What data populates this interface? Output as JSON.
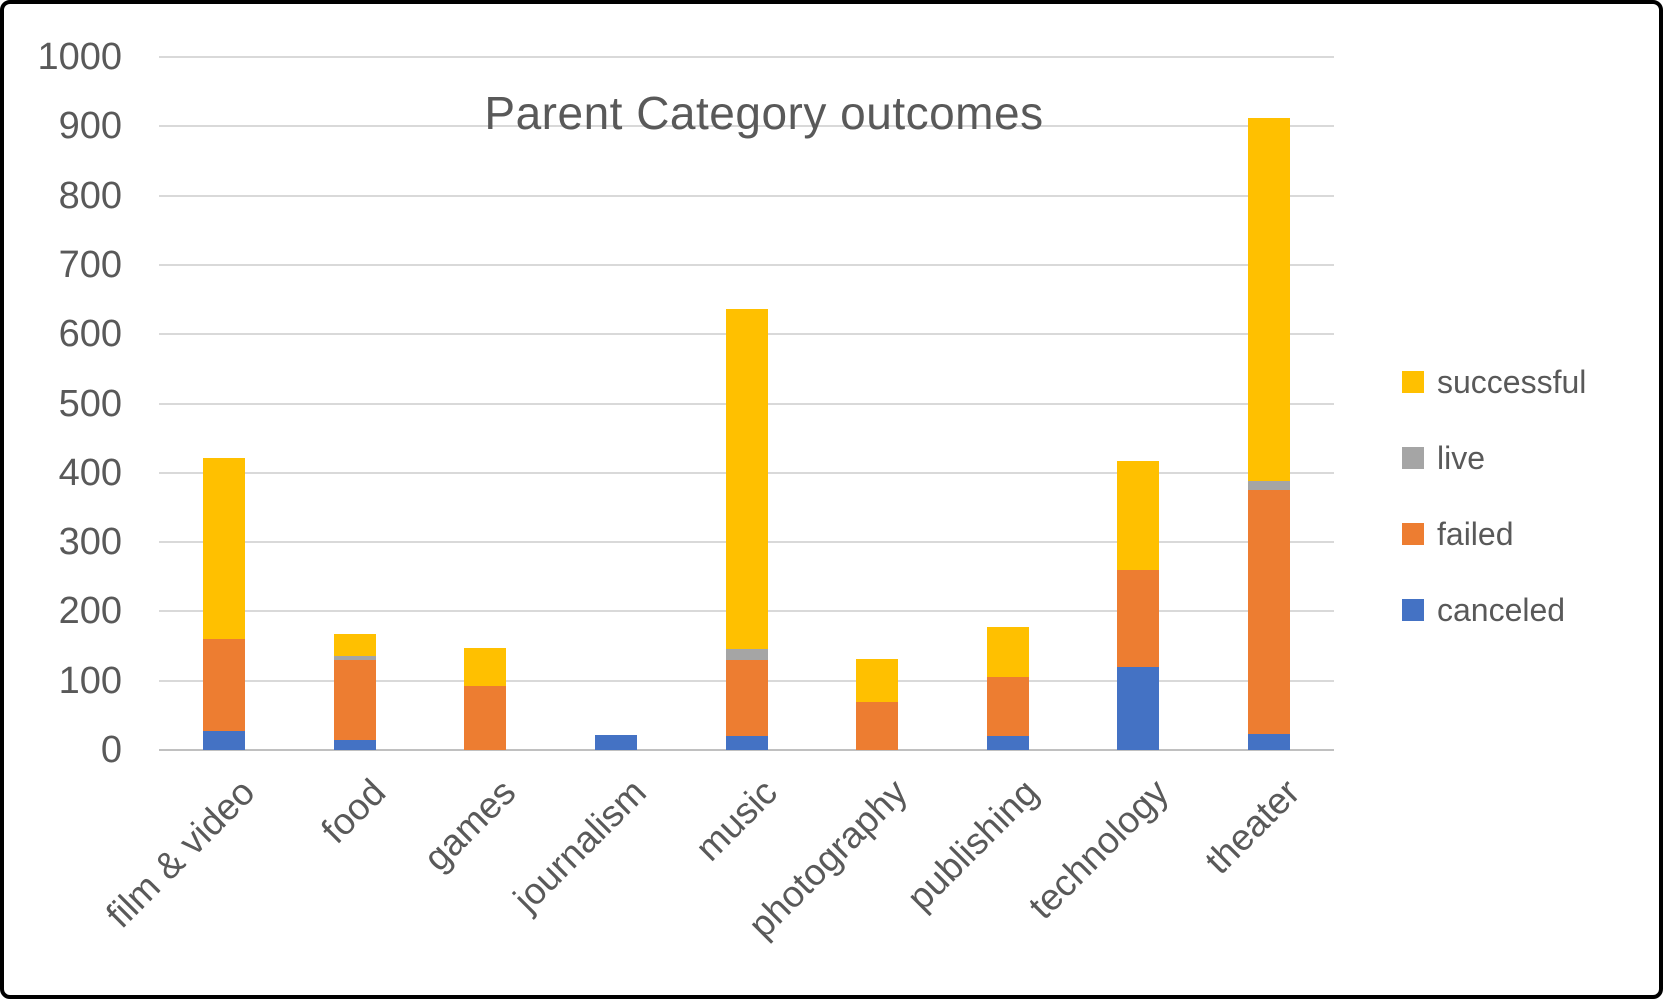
{
  "chart_data": {
    "type": "bar",
    "stacked": true,
    "title": "Parent Category outcomes",
    "xlabel": "",
    "ylabel": "",
    "categories": [
      "film & video",
      "food",
      "games",
      "journalism",
      "music",
      "photography",
      "publishing",
      "technology",
      "theater"
    ],
    "series": [
      {
        "name": "canceled",
        "color": "#4472C4",
        "values": [
          28,
          15,
          0,
          22,
          20,
          0,
          20,
          120,
          23
        ]
      },
      {
        "name": "failed",
        "color": "#ED7D31",
        "values": [
          132,
          115,
          92,
          0,
          110,
          69,
          86,
          140,
          352
        ]
      },
      {
        "name": "live",
        "color": "#A5A5A5",
        "values": [
          0,
          6,
          0,
          0,
          16,
          0,
          0,
          0,
          13
        ]
      },
      {
        "name": "successful",
        "color": "#FFC000",
        "values": [
          262,
          31,
          55,
          0,
          490,
          62,
          71,
          157,
          524
        ]
      }
    ],
    "totals": [
      422,
      167,
      147,
      22,
      636,
      131,
      177,
      417,
      912
    ],
    "legend": [
      "successful",
      "live",
      "failed",
      "canceled"
    ],
    "legend_position": "right",
    "ylim": [
      0,
      1000
    ],
    "y_tick_step": 100,
    "y_tick_labels": [
      "0",
      "100",
      "200",
      "300",
      "400",
      "500",
      "600",
      "700",
      "800",
      "900",
      "1000"
    ],
    "grid": true,
    "colors": {
      "text": "#595959",
      "gridline": "#D9D9D9",
      "axis_line": "#C0C0C0",
      "background": "#FFFFFF",
      "frame_border": "#000000"
    }
  }
}
